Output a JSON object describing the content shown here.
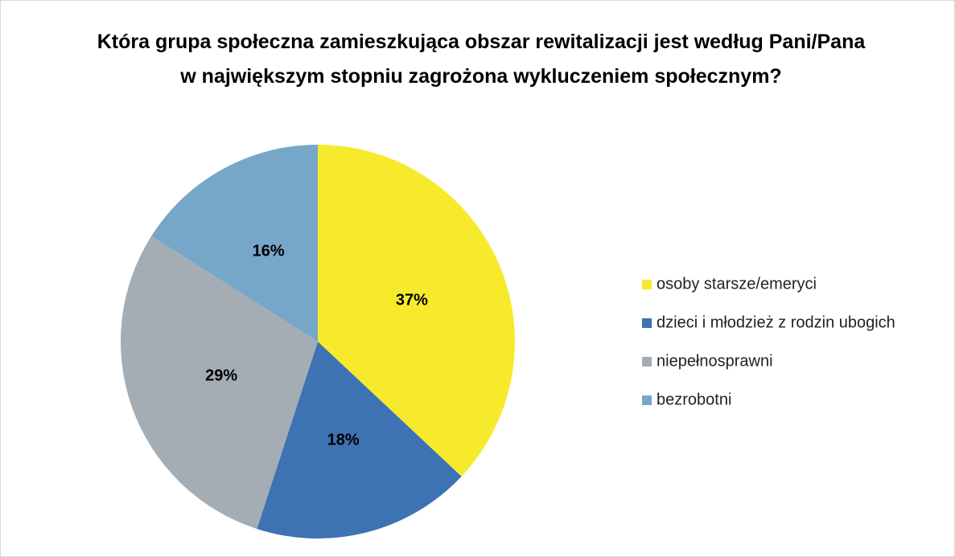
{
  "chart_data": {
    "type": "pie",
    "title": "Która grupa społeczna zamieszkująca obszar rewitalizacji jest według Pani/Pana w największym stopniu zagrożona wykluczeniem społecznym?",
    "categories": [
      "osoby starsze/emeryci",
      "dzieci i młodzież z rodzin ubogich",
      "niepełnosprawni",
      "bezrobotni"
    ],
    "values": [
      37,
      18,
      29,
      16
    ],
    "value_labels": [
      "37%",
      "18%",
      "29%",
      "16%"
    ],
    "colors": [
      "#f7ea2c",
      "#3d72b3",
      "#a4adb4",
      "#76a7c8"
    ],
    "legend": "right"
  }
}
